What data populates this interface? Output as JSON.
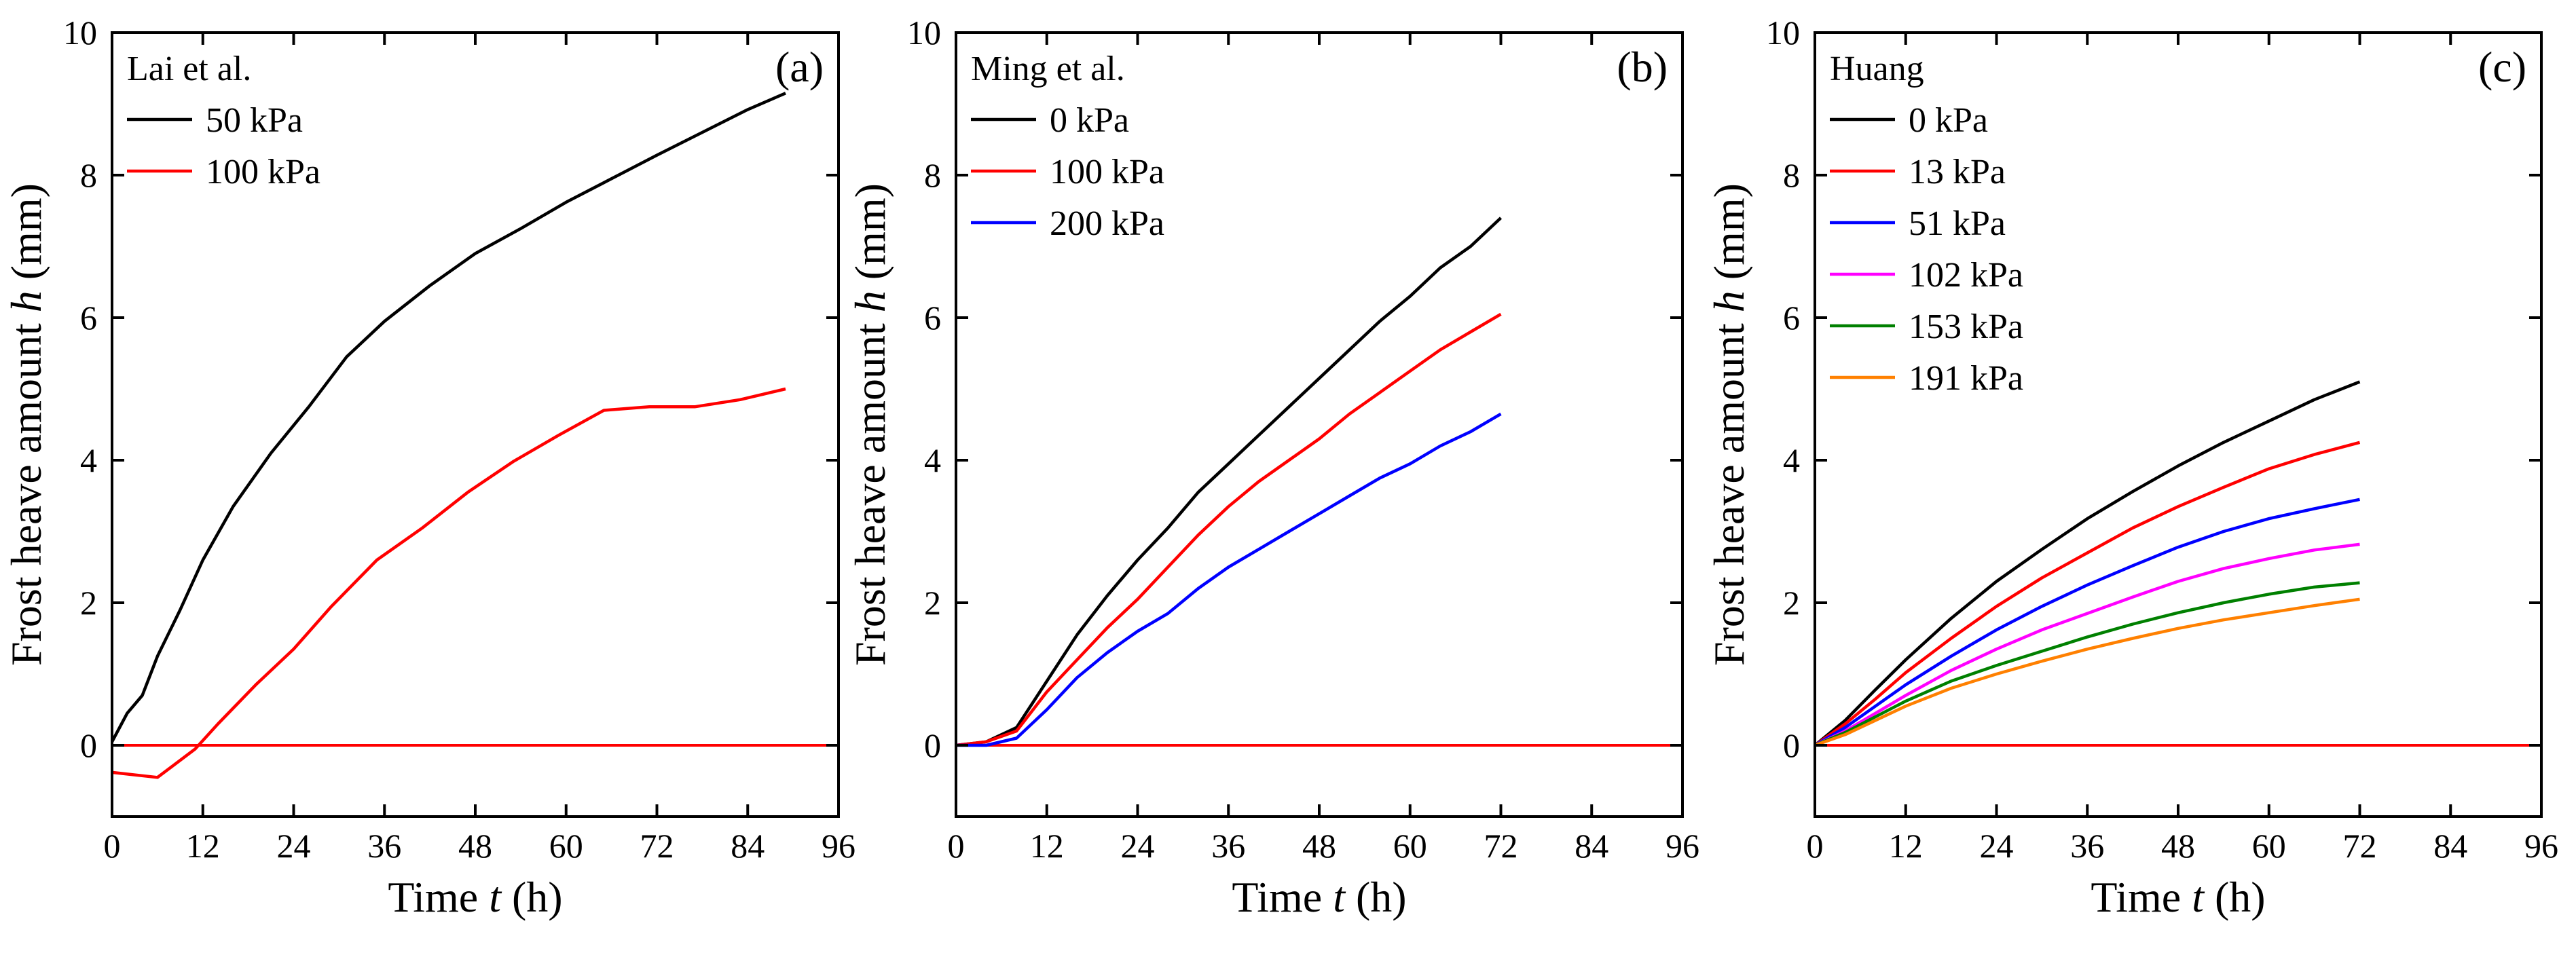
{
  "chart_data": [
    {
      "type": "line",
      "panel_label": "(a)",
      "legend_title": "Lai et al.",
      "xlabel": {
        "prefix": "Time ",
        "var": "t",
        "suffix": " (h)"
      },
      "ylabel": {
        "prefix": "Frost heave amount ",
        "var": "h",
        "suffix": " (mm)"
      },
      "xlim": [
        0,
        96
      ],
      "ylim": [
        -1,
        10
      ],
      "xticks": [
        0,
        12,
        24,
        36,
        48,
        60,
        72,
        84,
        96
      ],
      "yticks": [
        0,
        2,
        4,
        6,
        8,
        10
      ],
      "reference_line": {
        "y": 0,
        "color": "#ff0000"
      },
      "series": [
        {
          "name": "50 kPa",
          "color": "#000000",
          "x": [
            0,
            2,
            4,
            6,
            9,
            12,
            16,
            21,
            26,
            31,
            36,
            42,
            48,
            54,
            60,
            66,
            72,
            78,
            84,
            89
          ],
          "y": [
            0.05,
            0.45,
            0.7,
            1.25,
            1.9,
            2.6,
            3.35,
            4.1,
            4.75,
            5.45,
            5.95,
            6.45,
            6.9,
            7.25,
            7.62,
            7.95,
            8.28,
            8.6,
            8.92,
            9.15
          ]
        },
        {
          "name": "100 kPa",
          "color": "#ff0000",
          "x": [
            0,
            6,
            11,
            14,
            19,
            24,
            29,
            35,
            41,
            47,
            53,
            59,
            65,
            71,
            77,
            83,
            89
          ],
          "y": [
            -0.38,
            -0.45,
            -0.05,
            0.3,
            0.85,
            1.35,
            1.95,
            2.6,
            3.05,
            3.55,
            3.98,
            4.35,
            4.7,
            4.75,
            4.75,
            4.85,
            5.0
          ]
        }
      ]
    },
    {
      "type": "line",
      "panel_label": "(b)",
      "legend_title": "Ming et al.",
      "xlabel": {
        "prefix": "Time ",
        "var": "t",
        "suffix": " (h)"
      },
      "ylabel": {
        "prefix": "Frost heave amount ",
        "var": "h",
        "suffix": " (mm)"
      },
      "xlim": [
        0,
        96
      ],
      "ylim": [
        -1,
        10
      ],
      "xticks": [
        0,
        12,
        24,
        36,
        48,
        60,
        72,
        84,
        96
      ],
      "yticks": [
        0,
        2,
        4,
        6,
        8,
        10
      ],
      "reference_line": {
        "y": 0,
        "color": "#ff0000"
      },
      "series": [
        {
          "name": "0 kPa",
          "color": "#000000",
          "x": [
            0,
            4,
            8,
            12,
            16,
            20,
            24,
            28,
            32,
            36,
            40,
            44,
            48,
            52,
            56,
            60,
            64,
            68,
            72
          ],
          "y": [
            0.0,
            0.05,
            0.25,
            0.9,
            1.55,
            2.1,
            2.6,
            3.05,
            3.55,
            3.95,
            4.35,
            4.75,
            5.15,
            5.55,
            5.95,
            6.3,
            6.7,
            7.0,
            7.4
          ]
        },
        {
          "name": "100 kPa",
          "color": "#ff0000",
          "x": [
            0,
            4,
            8,
            12,
            16,
            20,
            24,
            28,
            32,
            36,
            40,
            44,
            48,
            52,
            56,
            60,
            64,
            68,
            72
          ],
          "y": [
            0.0,
            0.05,
            0.2,
            0.75,
            1.2,
            1.65,
            2.05,
            2.5,
            2.95,
            3.35,
            3.7,
            4.0,
            4.3,
            4.65,
            4.95,
            5.25,
            5.55,
            5.8,
            6.05
          ]
        },
        {
          "name": "200 kPa",
          "color": "#0000ff",
          "x": [
            0,
            4,
            8,
            12,
            16,
            20,
            24,
            28,
            32,
            36,
            40,
            44,
            48,
            52,
            56,
            60,
            64,
            68,
            72
          ],
          "y": [
            0.0,
            0.0,
            0.1,
            0.5,
            0.95,
            1.3,
            1.6,
            1.85,
            2.2,
            2.5,
            2.75,
            3.0,
            3.25,
            3.5,
            3.75,
            3.95,
            4.2,
            4.4,
            4.65
          ]
        }
      ]
    },
    {
      "type": "line",
      "panel_label": "(c)",
      "legend_title": "Huang",
      "xlabel": {
        "prefix": "Time ",
        "var": "t",
        "suffix": " (h)"
      },
      "ylabel": {
        "prefix": "Frost heave amount ",
        "var": "h",
        "suffix": " (mm)"
      },
      "xlim": [
        0,
        96
      ],
      "ylim": [
        -1,
        10
      ],
      "xticks": [
        0,
        12,
        24,
        36,
        48,
        60,
        72,
        84,
        96
      ],
      "yticks": [
        0,
        2,
        4,
        6,
        8,
        10
      ],
      "reference_line": {
        "y": 0,
        "color": "#ff0000"
      },
      "series": [
        {
          "name": "0 kPa",
          "color": "#000000",
          "x": [
            0,
            4,
            8,
            12,
            18,
            24,
            30,
            36,
            42,
            48,
            54,
            60,
            66,
            72
          ],
          "y": [
            0.0,
            0.35,
            0.78,
            1.2,
            1.78,
            2.3,
            2.75,
            3.18,
            3.56,
            3.92,
            4.25,
            4.55,
            4.85,
            5.1
          ]
        },
        {
          "name": "13 kPa",
          "color": "#ff0000",
          "x": [
            0,
            4,
            8,
            12,
            18,
            24,
            30,
            36,
            42,
            48,
            54,
            60,
            66,
            72
          ],
          "y": [
            0.0,
            0.3,
            0.65,
            1.02,
            1.5,
            1.95,
            2.35,
            2.7,
            3.05,
            3.35,
            3.62,
            3.88,
            4.08,
            4.25
          ]
        },
        {
          "name": "51 kPa",
          "color": "#0000ff",
          "x": [
            0,
            4,
            8,
            12,
            18,
            24,
            30,
            36,
            42,
            48,
            54,
            60,
            66,
            72
          ],
          "y": [
            0.0,
            0.25,
            0.55,
            0.85,
            1.25,
            1.62,
            1.95,
            2.25,
            2.52,
            2.78,
            3.0,
            3.18,
            3.32,
            3.45
          ]
        },
        {
          "name": "102 kPa",
          "color": "#ff00ff",
          "x": [
            0,
            4,
            8,
            12,
            18,
            24,
            30,
            36,
            42,
            48,
            54,
            60,
            66,
            72
          ],
          "y": [
            0.0,
            0.2,
            0.45,
            0.7,
            1.05,
            1.35,
            1.62,
            1.85,
            2.08,
            2.3,
            2.48,
            2.62,
            2.74,
            2.82
          ]
        },
        {
          "name": "153 kPa",
          "color": "#008000",
          "x": [
            0,
            4,
            8,
            12,
            18,
            24,
            30,
            36,
            42,
            48,
            54,
            60,
            66,
            72
          ],
          "y": [
            0.0,
            0.18,
            0.4,
            0.62,
            0.9,
            1.12,
            1.32,
            1.52,
            1.7,
            1.86,
            2.0,
            2.12,
            2.22,
            2.28
          ]
        },
        {
          "name": "191 kPa",
          "color": "#ff8000",
          "x": [
            0,
            4,
            8,
            12,
            18,
            24,
            30,
            36,
            42,
            48,
            54,
            60,
            66,
            72
          ],
          "y": [
            0.0,
            0.15,
            0.35,
            0.55,
            0.8,
            1.0,
            1.18,
            1.35,
            1.5,
            1.64,
            1.76,
            1.86,
            1.96,
            2.05
          ]
        }
      ]
    }
  ]
}
